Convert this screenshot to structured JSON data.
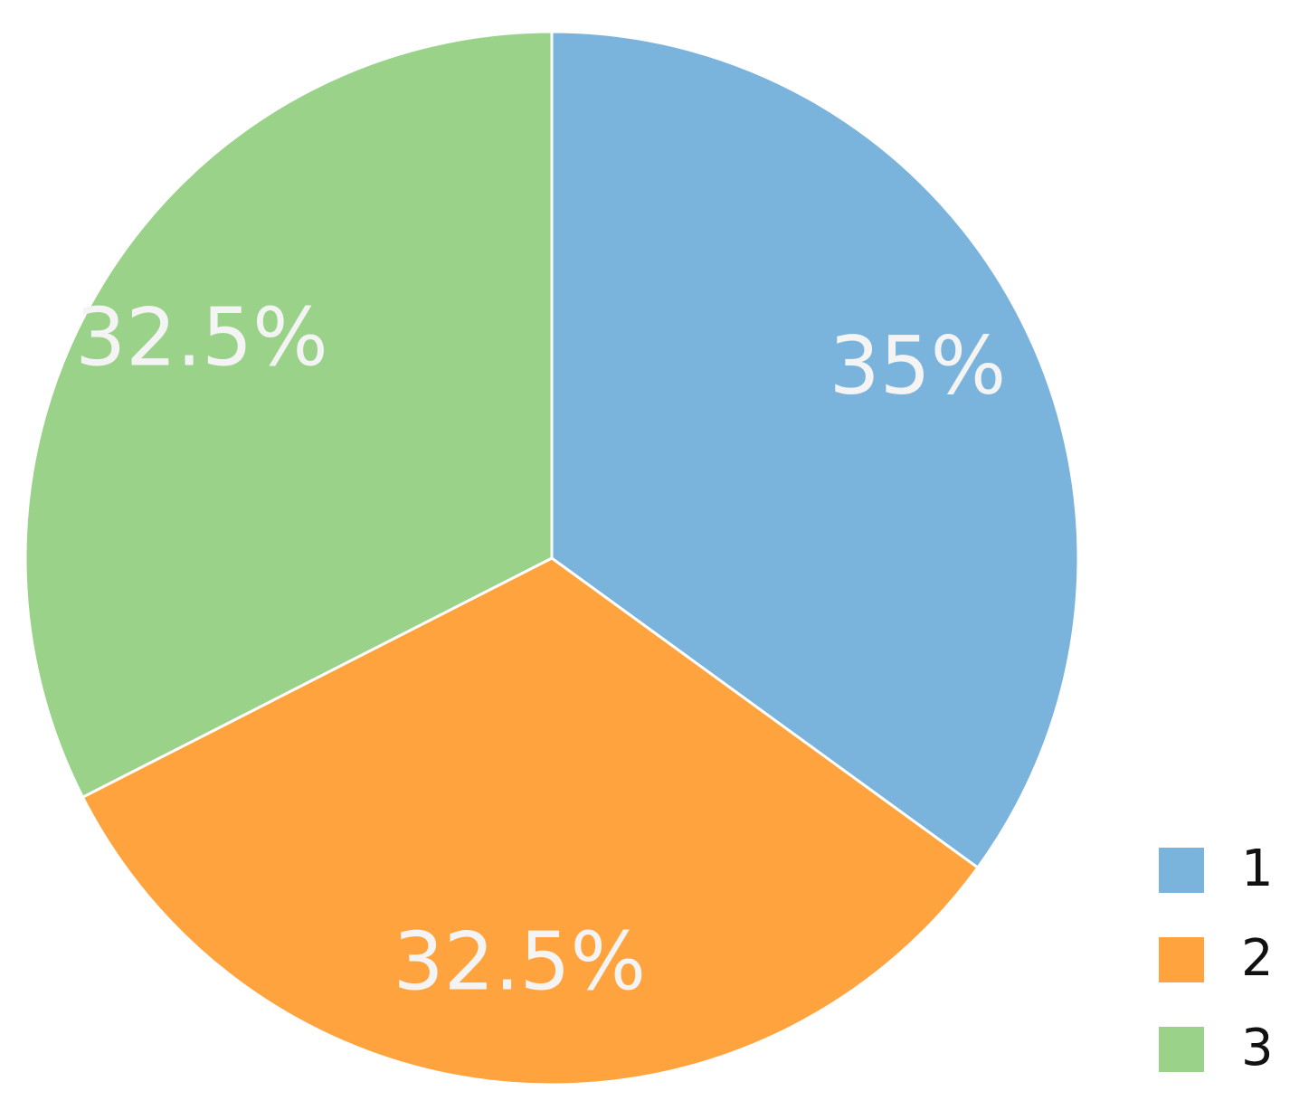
{
  "chart_data": {
    "type": "pie",
    "categories": [
      "1",
      "2",
      "3"
    ],
    "values": [
      35,
      32.5,
      32.5
    ],
    "value_labels": [
      "35%",
      "32.5%",
      "32.5%"
    ],
    "colors": [
      "#7ab3db",
      "#ffa33f",
      "#9ad28a"
    ],
    "legend": "bottom-right"
  }
}
